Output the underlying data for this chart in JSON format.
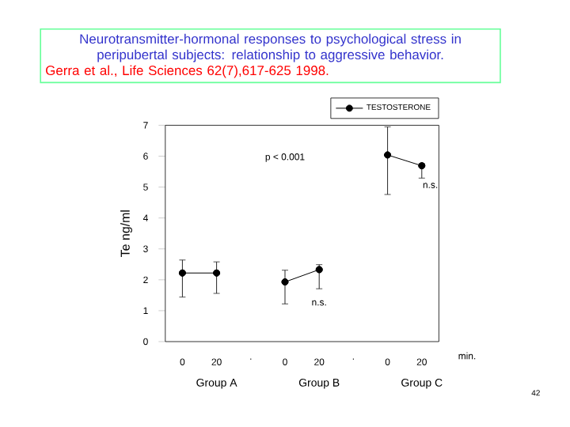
{
  "chart_data": {
    "type": "line",
    "title": "Neurotransmitter-hormonal responses to psychological stress in peripubertal subjects: relationship to aggressive behavior.",
    "subtitle": "Gerra et al., Life Sciences 62(7),617-625 1998.",
    "ylabel": "Te ng/ml",
    "categories": [
      "0",
      "20",
      ".",
      "0",
      "20",
      ".",
      "0",
      "20"
    ],
    "series": [
      {
        "name": "TESTOSTERONE",
        "color": "#000000",
        "values": [
          2.22,
          2.22,
          null,
          1.93,
          2.33,
          null,
          6.04,
          5.69
        ],
        "errors": [
          [
            1.44,
            2.64
          ],
          [
            1.56,
            2.58
          ],
          null,
          [
            1.22,
            2.31
          ],
          [
            1.71,
            2.49
          ],
          null,
          [
            4.76,
            6.95
          ],
          [
            5.29,
            5.76
          ]
        ]
      }
    ],
    "ylim": [
      0,
      7
    ],
    "yticks": [
      0,
      1,
      2,
      3,
      4,
      5,
      6,
      7
    ],
    "marker": "circle",
    "line_style": "solid",
    "legend": "top right",
    "grid": false,
    "annotations": [
      "p < 0.001",
      "n.s.",
      "n.s.",
      "Group A",
      "Group B",
      "Group C",
      "min.",
      "42"
    ]
  }
}
